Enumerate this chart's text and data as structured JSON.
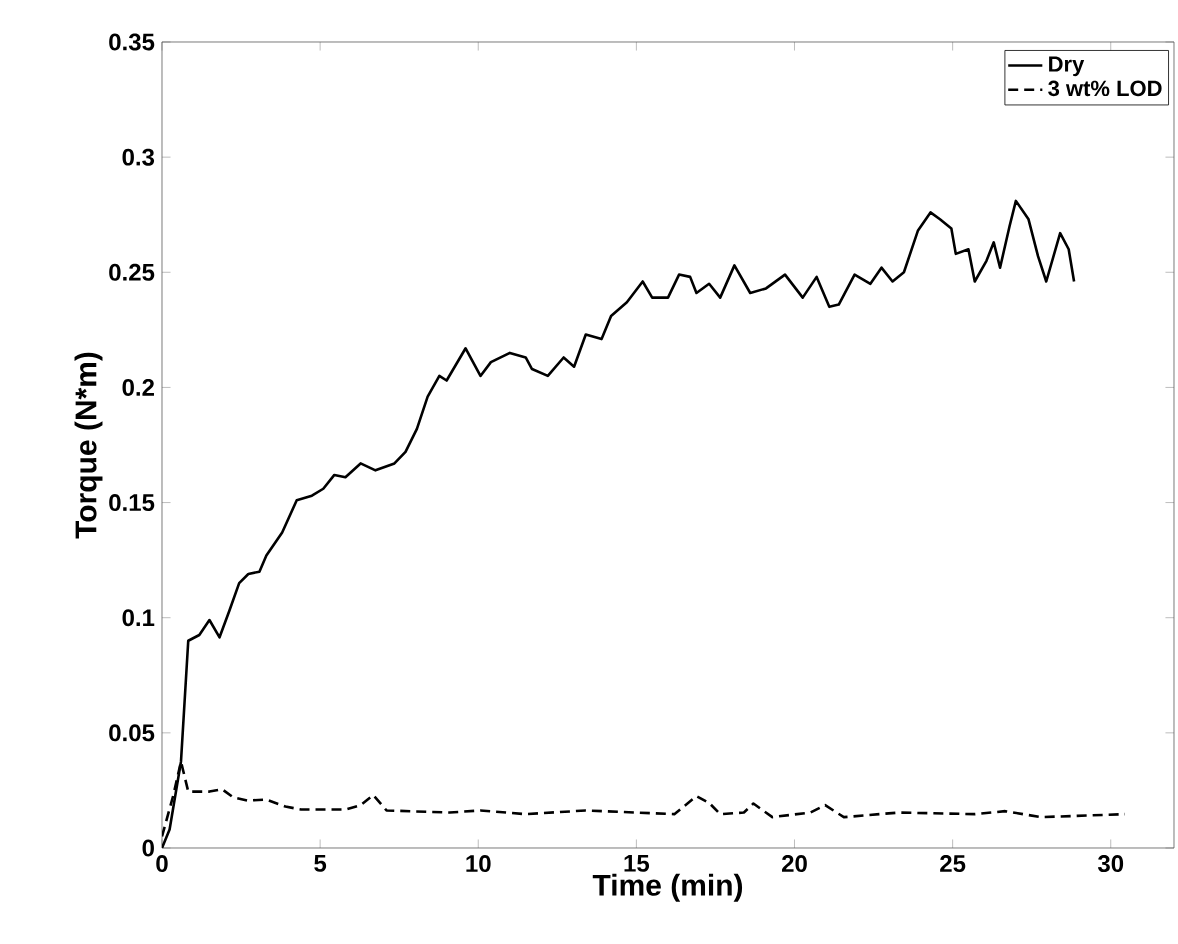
{
  "chart_data": {
    "type": "line",
    "xlabel": "Time (min)",
    "ylabel": "Torque (N*m)",
    "xlim": [
      0,
      32
    ],
    "ylim": [
      0,
      0.35
    ],
    "xticks": [
      0,
      5,
      10,
      15,
      20,
      25,
      30
    ],
    "yticks": [
      0,
      0.05,
      0.1,
      0.15,
      0.2,
      0.25,
      0.3,
      0.35
    ],
    "grid": false,
    "legend": "top right",
    "marker": "none",
    "series": [
      {
        "name": "Dry",
        "color": "#000000",
        "line_style": "solid",
        "x": [
          0,
          0.24,
          0.6,
          0.83,
          1.18,
          1.5,
          1.82,
          2.13,
          2.44,
          2.73,
          3.08,
          3.3,
          3.8,
          4.26,
          4.74,
          5.1,
          5.45,
          5.8,
          6.28,
          6.75,
          7.35,
          7.7,
          8.06,
          8.4,
          8.77,
          9.0,
          9.6,
          10.07,
          10.4,
          11.0,
          11.5,
          11.7,
          12.2,
          12.7,
          13.03,
          13.4,
          13.9,
          14.2,
          14.7,
          15.2,
          15.5,
          16.0,
          16.35,
          16.7,
          16.9,
          17.3,
          17.65,
          18.1,
          18.6,
          19.1,
          19.7,
          20.26,
          20.7,
          21.1,
          21.4,
          21.9,
          22.4,
          22.75,
          23.1,
          23.46,
          23.9,
          24.3,
          24.6,
          24.96,
          25.1,
          25.5,
          25.7,
          26.07,
          26.3,
          26.5,
          26.8,
          27.0,
          27.4,
          27.7,
          27.96,
          28.4,
          28.67,
          28.84
        ],
        "values": [
          0,
          0.008,
          0.0375,
          0.09,
          0.0925,
          0.099,
          0.0915,
          0.103,
          0.115,
          0.119,
          0.12,
          0.127,
          0.137,
          0.151,
          0.153,
          0.156,
          0.162,
          0.161,
          0.167,
          0.164,
          0.167,
          0.172,
          0.182,
          0.196,
          0.205,
          0.203,
          0.217,
          0.205,
          0.211,
          0.215,
          0.213,
          0.208,
          0.205,
          0.213,
          0.209,
          0.223,
          0.221,
          0.231,
          0.237,
          0.246,
          0.239,
          0.239,
          0.249,
          0.248,
          0.241,
          0.245,
          0.239,
          0.253,
          0.241,
          0.243,
          0.249,
          0.239,
          0.248,
          0.235,
          0.236,
          0.249,
          0.245,
          0.252,
          0.246,
          0.25,
          0.268,
          0.276,
          0.273,
          0.269,
          0.258,
          0.26,
          0.246,
          0.255,
          0.263,
          0.252,
          0.27,
          0.281,
          0.273,
          0.257,
          0.246,
          0.267,
          0.26,
          0.246
        ]
      },
      {
        "name": "3 wt% LOD",
        "color": "#000000",
        "line_style": "dashed",
        "x": [
          0,
          0.36,
          0.6,
          0.83,
          1.5,
          1.9,
          2.25,
          2.7,
          3.3,
          3.9,
          4.4,
          5.8,
          6.28,
          6.68,
          7.1,
          9.1,
          10.07,
          11.5,
          13.4,
          16.2,
          16.9,
          17.3,
          17.65,
          18.4,
          18.7,
          19.3,
          20.5,
          20.97,
          21.56,
          23.3,
          25.7,
          26.66,
          27.8,
          30.45
        ],
        "values": [
          0.005,
          0.023,
          0.0375,
          0.0245,
          0.0245,
          0.0255,
          0.022,
          0.0206,
          0.021,
          0.018,
          0.0167,
          0.0167,
          0.0186,
          0.023,
          0.0163,
          0.0154,
          0.0163,
          0.0147,
          0.0163,
          0.0147,
          0.0225,
          0.0196,
          0.0147,
          0.0154,
          0.0193,
          0.0134,
          0.0154,
          0.0186,
          0.0134,
          0.0154,
          0.0147,
          0.016,
          0.0134,
          0.0147
        ]
      }
    ]
  }
}
